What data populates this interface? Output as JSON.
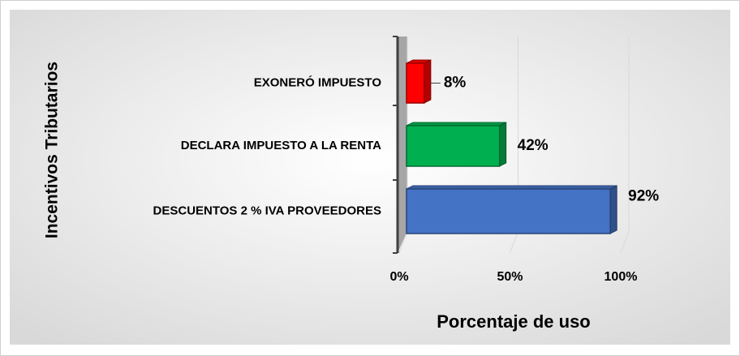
{
  "chart_data": {
    "type": "bar",
    "orientation": "horizontal",
    "categories": [
      "EXONERÓ IMPUESTO",
      "DECLARA IMPUESTO A LA RENTA",
      "DESCUENTOS 2 % IVA PROVEEDORES"
    ],
    "values": [
      8,
      42,
      92
    ],
    "value_labels": [
      "8%",
      "42%",
      "92%"
    ],
    "colors": [
      "#ff0000",
      "#00b050",
      "#4472c4"
    ],
    "xlim": [
      0,
      100
    ],
    "xticks": [
      {
        "value": 0,
        "label": "0%"
      },
      {
        "value": 50,
        "label": "50%"
      },
      {
        "value": 100,
        "label": "100%"
      }
    ],
    "xlabel": "Porcentaje de uso",
    "ylabel": "Incentivos Tributarios",
    "grid": true
  }
}
